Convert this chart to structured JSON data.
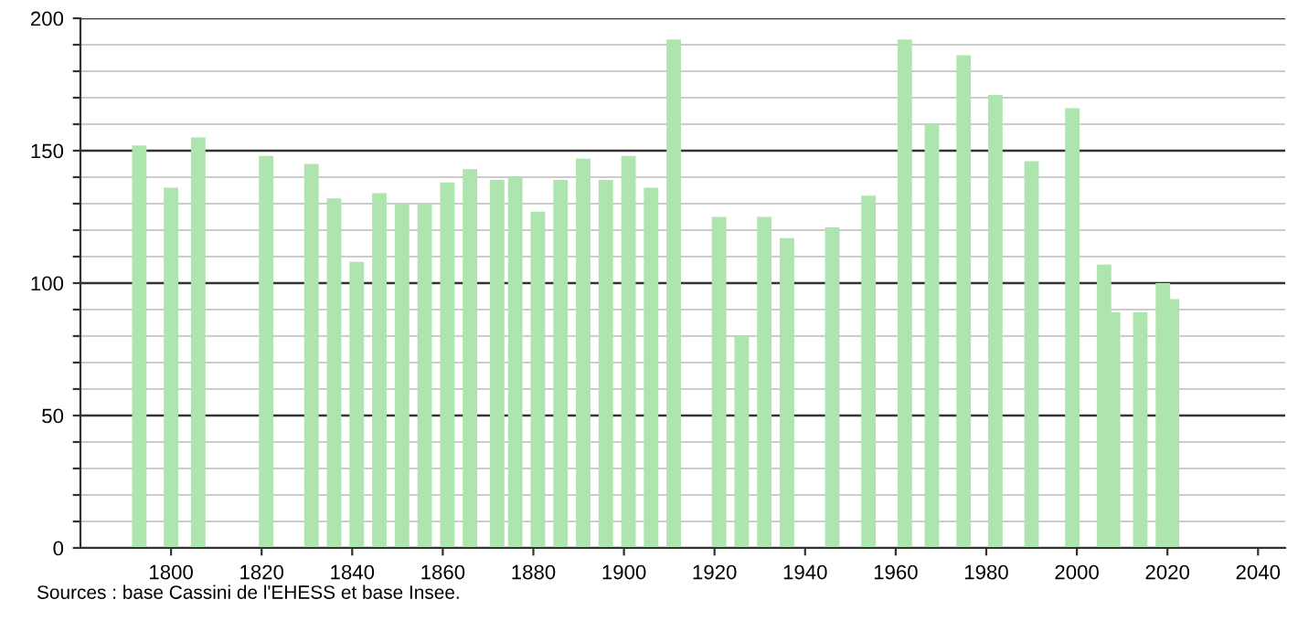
{
  "chart_data": {
    "type": "bar",
    "color": "#aee4ae",
    "x": [
      1793,
      1800,
      1806,
      1821,
      1831,
      1836,
      1841,
      1846,
      1851,
      1856,
      1861,
      1866,
      1872,
      1876,
      1881,
      1886,
      1891,
      1896,
      1901,
      1906,
      1911,
      1921,
      1926,
      1931,
      1936,
      1946,
      1954,
      1962,
      1968,
      1975,
      1982,
      1990,
      1999,
      2006,
      2008,
      2014,
      2019,
      2021
    ],
    "values": [
      152,
      136,
      155,
      148,
      145,
      132,
      108,
      134,
      130,
      130,
      138,
      143,
      139,
      140,
      127,
      139,
      147,
      139,
      148,
      136,
      192,
      125,
      80,
      125,
      117,
      121,
      133,
      192,
      160,
      186,
      171,
      146,
      166,
      107,
      89,
      89,
      100,
      94
    ],
    "xlim": [
      1780,
      2046
    ],
    "xticks": [
      1800,
      1820,
      1840,
      1860,
      1880,
      1900,
      1920,
      1940,
      1960,
      1980,
      2000,
      2020,
      2040
    ],
    "ylim": [
      0,
      200
    ],
    "yticks": [
      0,
      {
        "value": 10,
        "label": null
      },
      {
        "value": 20,
        "label": null
      },
      {
        "value": 30,
        "label": null
      },
      {
        "value": 40,
        "label": null
      },
      50,
      {
        "value": 60,
        "label": null
      },
      {
        "value": 70,
        "label": null
      },
      {
        "value": 80,
        "label": null
      },
      {
        "value": 90,
        "label": null
      },
      100,
      {
        "value": 110,
        "label": null
      },
      {
        "value": 120,
        "label": null
      },
      {
        "value": 130,
        "label": null
      },
      {
        "value": 140,
        "label": null
      },
      150,
      {
        "value": 160,
        "label": null
      },
      {
        "value": 170,
        "label": null
      },
      {
        "value": 180,
        "label": null
      },
      {
        "value": 190,
        "label": null
      },
      200
    ],
    "grid": "y",
    "annotations": [
      "Sources : base Cassini de l'EHESS et base Insee."
    ]
  }
}
